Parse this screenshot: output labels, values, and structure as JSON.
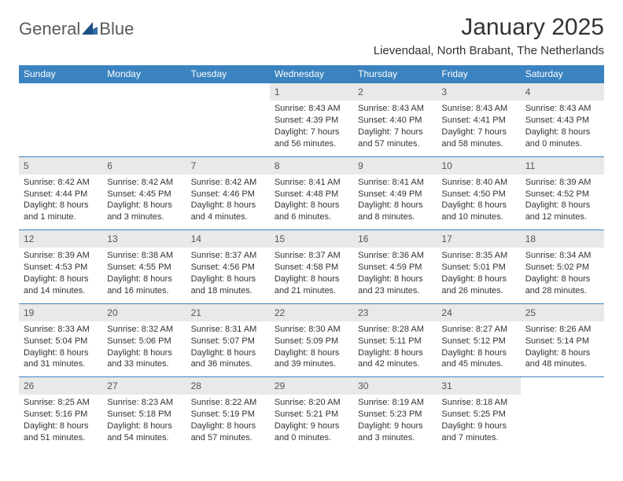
{
  "logo": {
    "text1": "General",
    "text2": "Blue"
  },
  "title": "January 2025",
  "location": "Lievendaal, North Brabant, The Netherlands",
  "weekdays": [
    "Sunday",
    "Monday",
    "Tuesday",
    "Wednesday",
    "Thursday",
    "Friday",
    "Saturday"
  ],
  "header_bg": "#3b83c0",
  "daynum_bg": "#e9e9e9",
  "row_border": "#3b83c0",
  "weeks": [
    [
      {
        "num": "",
        "sunrise": "",
        "sunset": "",
        "daylight": "",
        "empty": true
      },
      {
        "num": "",
        "sunrise": "",
        "sunset": "",
        "daylight": "",
        "empty": true
      },
      {
        "num": "",
        "sunrise": "",
        "sunset": "",
        "daylight": "",
        "empty": true
      },
      {
        "num": "1",
        "sunrise": "Sunrise: 8:43 AM",
        "sunset": "Sunset: 4:39 PM",
        "daylight": "Daylight: 7 hours and 56 minutes."
      },
      {
        "num": "2",
        "sunrise": "Sunrise: 8:43 AM",
        "sunset": "Sunset: 4:40 PM",
        "daylight": "Daylight: 7 hours and 57 minutes."
      },
      {
        "num": "3",
        "sunrise": "Sunrise: 8:43 AM",
        "sunset": "Sunset: 4:41 PM",
        "daylight": "Daylight: 7 hours and 58 minutes."
      },
      {
        "num": "4",
        "sunrise": "Sunrise: 8:43 AM",
        "sunset": "Sunset: 4:43 PM",
        "daylight": "Daylight: 8 hours and 0 minutes."
      }
    ],
    [
      {
        "num": "5",
        "sunrise": "Sunrise: 8:42 AM",
        "sunset": "Sunset: 4:44 PM",
        "daylight": "Daylight: 8 hours and 1 minute."
      },
      {
        "num": "6",
        "sunrise": "Sunrise: 8:42 AM",
        "sunset": "Sunset: 4:45 PM",
        "daylight": "Daylight: 8 hours and 3 minutes."
      },
      {
        "num": "7",
        "sunrise": "Sunrise: 8:42 AM",
        "sunset": "Sunset: 4:46 PM",
        "daylight": "Daylight: 8 hours and 4 minutes."
      },
      {
        "num": "8",
        "sunrise": "Sunrise: 8:41 AM",
        "sunset": "Sunset: 4:48 PM",
        "daylight": "Daylight: 8 hours and 6 minutes."
      },
      {
        "num": "9",
        "sunrise": "Sunrise: 8:41 AM",
        "sunset": "Sunset: 4:49 PM",
        "daylight": "Daylight: 8 hours and 8 minutes."
      },
      {
        "num": "10",
        "sunrise": "Sunrise: 8:40 AM",
        "sunset": "Sunset: 4:50 PM",
        "daylight": "Daylight: 8 hours and 10 minutes."
      },
      {
        "num": "11",
        "sunrise": "Sunrise: 8:39 AM",
        "sunset": "Sunset: 4:52 PM",
        "daylight": "Daylight: 8 hours and 12 minutes."
      }
    ],
    [
      {
        "num": "12",
        "sunrise": "Sunrise: 8:39 AM",
        "sunset": "Sunset: 4:53 PM",
        "daylight": "Daylight: 8 hours and 14 minutes."
      },
      {
        "num": "13",
        "sunrise": "Sunrise: 8:38 AM",
        "sunset": "Sunset: 4:55 PM",
        "daylight": "Daylight: 8 hours and 16 minutes."
      },
      {
        "num": "14",
        "sunrise": "Sunrise: 8:37 AM",
        "sunset": "Sunset: 4:56 PM",
        "daylight": "Daylight: 8 hours and 18 minutes."
      },
      {
        "num": "15",
        "sunrise": "Sunrise: 8:37 AM",
        "sunset": "Sunset: 4:58 PM",
        "daylight": "Daylight: 8 hours and 21 minutes."
      },
      {
        "num": "16",
        "sunrise": "Sunrise: 8:36 AM",
        "sunset": "Sunset: 4:59 PM",
        "daylight": "Daylight: 8 hours and 23 minutes."
      },
      {
        "num": "17",
        "sunrise": "Sunrise: 8:35 AM",
        "sunset": "Sunset: 5:01 PM",
        "daylight": "Daylight: 8 hours and 26 minutes."
      },
      {
        "num": "18",
        "sunrise": "Sunrise: 8:34 AM",
        "sunset": "Sunset: 5:02 PM",
        "daylight": "Daylight: 8 hours and 28 minutes."
      }
    ],
    [
      {
        "num": "19",
        "sunrise": "Sunrise: 8:33 AM",
        "sunset": "Sunset: 5:04 PM",
        "daylight": "Daylight: 8 hours and 31 minutes."
      },
      {
        "num": "20",
        "sunrise": "Sunrise: 8:32 AM",
        "sunset": "Sunset: 5:06 PM",
        "daylight": "Daylight: 8 hours and 33 minutes."
      },
      {
        "num": "21",
        "sunrise": "Sunrise: 8:31 AM",
        "sunset": "Sunset: 5:07 PM",
        "daylight": "Daylight: 8 hours and 36 minutes."
      },
      {
        "num": "22",
        "sunrise": "Sunrise: 8:30 AM",
        "sunset": "Sunset: 5:09 PM",
        "daylight": "Daylight: 8 hours and 39 minutes."
      },
      {
        "num": "23",
        "sunrise": "Sunrise: 8:28 AM",
        "sunset": "Sunset: 5:11 PM",
        "daylight": "Daylight: 8 hours and 42 minutes."
      },
      {
        "num": "24",
        "sunrise": "Sunrise: 8:27 AM",
        "sunset": "Sunset: 5:12 PM",
        "daylight": "Daylight: 8 hours and 45 minutes."
      },
      {
        "num": "25",
        "sunrise": "Sunrise: 8:26 AM",
        "sunset": "Sunset: 5:14 PM",
        "daylight": "Daylight: 8 hours and 48 minutes."
      }
    ],
    [
      {
        "num": "26",
        "sunrise": "Sunrise: 8:25 AM",
        "sunset": "Sunset: 5:16 PM",
        "daylight": "Daylight: 8 hours and 51 minutes."
      },
      {
        "num": "27",
        "sunrise": "Sunrise: 8:23 AM",
        "sunset": "Sunset: 5:18 PM",
        "daylight": "Daylight: 8 hours and 54 minutes."
      },
      {
        "num": "28",
        "sunrise": "Sunrise: 8:22 AM",
        "sunset": "Sunset: 5:19 PM",
        "daylight": "Daylight: 8 hours and 57 minutes."
      },
      {
        "num": "29",
        "sunrise": "Sunrise: 8:20 AM",
        "sunset": "Sunset: 5:21 PM",
        "daylight": "Daylight: 9 hours and 0 minutes."
      },
      {
        "num": "30",
        "sunrise": "Sunrise: 8:19 AM",
        "sunset": "Sunset: 5:23 PM",
        "daylight": "Daylight: 9 hours and 3 minutes."
      },
      {
        "num": "31",
        "sunrise": "Sunrise: 8:18 AM",
        "sunset": "Sunset: 5:25 PM",
        "daylight": "Daylight: 9 hours and 7 minutes."
      },
      {
        "num": "",
        "sunrise": "",
        "sunset": "",
        "daylight": "",
        "empty": true
      }
    ]
  ]
}
